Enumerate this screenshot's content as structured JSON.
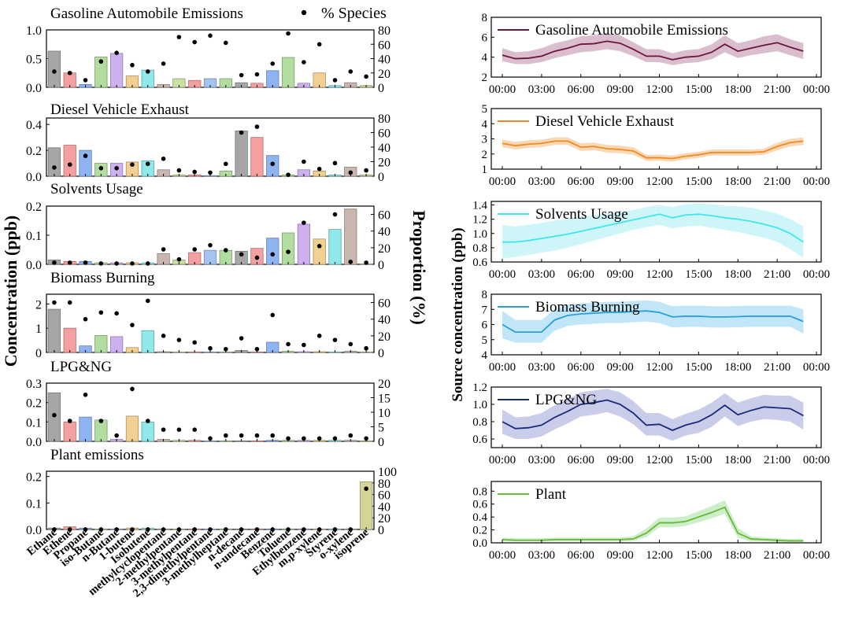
{
  "figure": {
    "left_y_label": "Concentration (ppb)",
    "right_y_label": "Proportion (%)",
    "source_y_label": "Source concentration (ppb)",
    "legend_species": "% Species"
  },
  "species": [
    "Ethane",
    "Ethene",
    "Propane",
    "iso-Butane",
    "n-Butane",
    "1-butene",
    "Isobutene",
    "methylcyclopentane",
    "2-methylpentane",
    "3-methylpentane",
    "2,3-dimethylpentane",
    "3-methylheptane",
    "n-decane",
    "n-undecane",
    "Benzene",
    "Toluene",
    "Ethylbenzene",
    "m,p-xylene",
    "Styrene",
    "o-xylene",
    "isoprene"
  ],
  "bar_colors": [
    "#a6a6a6",
    "#f4a0a0",
    "#8fb4f2",
    "#b3dda0",
    "#cdb0ee",
    "#f1d091",
    "#8fe8ea",
    "#c9b6ae",
    "#c8e0a0",
    "#f4a0a0",
    "#a5c3f0",
    "#b3dda0",
    "#a6a6a6",
    "#f4a0a0",
    "#8fb4f2",
    "#b3dda0",
    "#cdb0ee",
    "#f1d091",
    "#8fe8ea",
    "#c9b6ae",
    "#d4d49a"
  ],
  "diurnal_times": [
    "00:00",
    "03:00",
    "06:00",
    "09:00",
    "12:00",
    "15:00",
    "18:00",
    "21:00",
    "00:00"
  ],
  "chart_data": [
    {
      "type": "bar",
      "title": "Gasoline Automobile Emissions",
      "ylabel": "Concentration (ppb)",
      "ylim": [
        0,
        1.0
      ],
      "yticks": [
        "0.0",
        "0.5",
        "1.0"
      ],
      "y2label": "Proportion (%)",
      "y2lim": [
        0,
        80
      ],
      "y2ticks": [
        "0",
        "20",
        "40",
        "60",
        "80"
      ],
      "values": [
        0.63,
        0.25,
        0.05,
        0.53,
        0.59,
        0.2,
        0.3,
        0.05,
        0.15,
        0.12,
        0.15,
        0.15,
        0.08,
        0.07,
        0.29,
        0.52,
        0.07,
        0.25,
        0.03,
        0.08,
        0.03
      ],
      "proportion": [
        22,
        20,
        10,
        36,
        48,
        31,
        22,
        33,
        70,
        63,
        72,
        62,
        17,
        18,
        33,
        75,
        35,
        60,
        10,
        22,
        15
      ]
    },
    {
      "type": "bar",
      "title": "Diesel Vehicle Exhaust",
      "ylim": [
        0,
        0.45
      ],
      "yticks": [
        "0.0",
        "0.2",
        "0.4"
      ],
      "y2lim": [
        0,
        80
      ],
      "y2ticks": [
        "0",
        "20",
        "40",
        "60",
        "80"
      ],
      "values": [
        0.22,
        0.24,
        0.2,
        0.1,
        0.1,
        0.11,
        0.12,
        0.05,
        0.01,
        0.01,
        0.005,
        0.04,
        0.35,
        0.3,
        0.16,
        0.01,
        0.05,
        0.04,
        0.01,
        0.07,
        0.01
      ],
      "proportion": [
        12,
        16,
        28,
        11,
        11,
        16,
        17,
        24,
        8,
        6,
        5,
        17,
        60,
        68,
        17,
        2,
        20,
        10,
        18,
        5,
        8
      ]
    },
    {
      "type": "bar",
      "title": "Solvents Usage",
      "ylim": [
        0,
        0.2
      ],
      "yticks": [
        "0.0",
        "0.1",
        "0.2"
      ],
      "y2lim": [
        0,
        70
      ],
      "y2ticks": [
        "0",
        "20",
        "40",
        "60"
      ],
      "values": [
        0.015,
        0.01,
        0.01,
        0.005,
        0.005,
        0.005,
        0.005,
        0.037,
        0.015,
        0.04,
        0.048,
        0.048,
        0.045,
        0.055,
        0.09,
        0.108,
        0.138,
        0.087,
        0.12,
        0.19,
        0.0
      ],
      "proportion": [
        2,
        2,
        2,
        1,
        1,
        1,
        1,
        18,
        6,
        18,
        23,
        17,
        12,
        8,
        12,
        15,
        50,
        22,
        60,
        3,
        2
      ]
    },
    {
      "type": "bar",
      "title": "Biomass Burning",
      "ylim": [
        0,
        2.4
      ],
      "yticks": [
        "0",
        "1",
        "2"
      ],
      "y2lim": [
        0,
        70
      ],
      "y2ticks": [
        "0",
        "20",
        "40",
        "60"
      ],
      "values": [
        1.78,
        1.0,
        0.27,
        0.7,
        0.65,
        0.2,
        0.9,
        0.03,
        0.02,
        0.02,
        0.01,
        0.01,
        0.08,
        0.01,
        0.42,
        0.05,
        0.03,
        0.03,
        0.02,
        0.05,
        0.02
      ],
      "proportion": [
        60,
        60,
        40,
        48,
        47,
        33,
        62,
        20,
        15,
        12,
        5,
        4,
        17,
        4,
        45,
        10,
        9,
        20,
        15,
        10,
        5
      ]
    },
    {
      "type": "bar",
      "title": "LPG&NG",
      "ylim": [
        0,
        0.3
      ],
      "yticks": [
        "0.0",
        "0.1",
        "0.2",
        "0.3"
      ],
      "y2lim": [
        0,
        20
      ],
      "y2ticks": [
        "0",
        "5",
        "10",
        "15",
        "20"
      ],
      "values": [
        0.25,
        0.1,
        0.125,
        0.11,
        0.01,
        0.13,
        0.1,
        0.01,
        0.005,
        0.005,
        0.002,
        0.002,
        0.002,
        0.002,
        0.005,
        0.005,
        0.005,
        0.005,
        0.005,
        0.005,
        0.002
      ],
      "proportion": [
        9,
        7,
        16,
        7,
        2,
        18,
        7,
        4,
        4,
        4,
        1,
        2,
        2,
        2,
        2,
        1,
        1,
        1,
        1,
        2,
        1
      ]
    },
    {
      "type": "bar",
      "title": "Plant emissions",
      "ylim": [
        0,
        0.22
      ],
      "yticks": [
        "0.0",
        "0.1",
        "0.2"
      ],
      "y2lim": [
        0,
        100
      ],
      "y2ticks": [
        "0",
        "20",
        "40",
        "60",
        "80",
        "100"
      ],
      "values": [
        0.005,
        0.01,
        0.005,
        0.002,
        0.002,
        0.005,
        0.005,
        0.002,
        0.002,
        0.002,
        0.002,
        0.002,
        0.002,
        0.002,
        0.002,
        0.002,
        0.002,
        0.002,
        0.002,
        0.002,
        0.18
      ],
      "proportion": [
        0,
        0,
        0,
        0,
        0,
        0,
        0,
        0,
        0,
        0,
        0,
        0,
        0,
        0,
        0,
        0,
        0,
        0,
        0,
        0,
        70
      ]
    },
    {
      "type": "line",
      "title": "Gasoline Automobile Emissions",
      "color": "#6b1540",
      "band": "#d7b7c8",
      "ylim": [
        2,
        8
      ],
      "yticks": [
        "2",
        "4",
        "6",
        "8"
      ],
      "xlim": [
        0,
        24
      ],
      "x": [
        0,
        1,
        2,
        3,
        4,
        5,
        6,
        7,
        8,
        9,
        10,
        11,
        12,
        13,
        14,
        15,
        16,
        17,
        18,
        19,
        20,
        21,
        22,
        23
      ],
      "mean": [
        4.2,
        3.85,
        3.9,
        4.1,
        4.6,
        4.9,
        5.3,
        5.35,
        5.6,
        5.4,
        4.8,
        4.1,
        4.1,
        3.75,
        4.0,
        4.1,
        4.5,
        5.3,
        4.6,
        4.9,
        5.2,
        5.45,
        5.0,
        4.6
      ],
      "lower": [
        3.6,
        3.3,
        3.3,
        3.5,
        3.9,
        4.2,
        4.5,
        4.6,
        4.8,
        4.6,
        4.1,
        3.5,
        3.5,
        3.2,
        3.4,
        3.5,
        3.8,
        4.5,
        3.9,
        4.2,
        4.4,
        4.6,
        4.2,
        3.8
      ],
      "upper": [
        4.9,
        4.5,
        4.6,
        4.9,
        5.4,
        5.7,
        6.1,
        6.2,
        6.4,
        6.2,
        5.5,
        4.8,
        4.8,
        4.4,
        4.7,
        4.8,
        5.3,
        6.2,
        5.4,
        5.7,
        6.1,
        6.3,
        5.8,
        5.4
      ]
    },
    {
      "type": "line",
      "title": "Diesel Vehicle Exhaust",
      "color": "#f08a24",
      "band": "#f9d3ad",
      "ylim": [
        1,
        5
      ],
      "yticks": [
        "1",
        "2",
        "3",
        "4",
        "5"
      ],
      "xlim": [
        0,
        24
      ],
      "x": [
        0,
        1,
        2,
        3,
        4,
        5,
        6,
        7,
        8,
        9,
        10,
        11,
        12,
        13,
        14,
        15,
        16,
        17,
        18,
        19,
        20,
        21,
        22,
        23
      ],
      "mean": [
        2.7,
        2.55,
        2.65,
        2.7,
        2.85,
        2.85,
        2.45,
        2.5,
        2.35,
        2.3,
        2.2,
        1.75,
        1.75,
        1.7,
        1.85,
        1.95,
        2.1,
        2.1,
        2.1,
        2.1,
        2.15,
        2.5,
        2.75,
        2.85
      ],
      "lower": [
        2.45,
        2.3,
        2.4,
        2.45,
        2.6,
        2.6,
        2.2,
        2.25,
        2.1,
        2.05,
        1.95,
        1.55,
        1.55,
        1.5,
        1.65,
        1.75,
        1.9,
        1.9,
        1.9,
        1.9,
        1.95,
        2.25,
        2.5,
        2.6
      ],
      "upper": [
        2.95,
        2.8,
        2.9,
        2.95,
        3.1,
        3.1,
        2.7,
        2.75,
        2.6,
        2.55,
        2.45,
        1.95,
        1.95,
        1.9,
        2.05,
        2.15,
        2.3,
        2.3,
        2.3,
        2.3,
        2.35,
        2.75,
        3.0,
        3.1
      ]
    },
    {
      "type": "line",
      "title": "Solvents Usage",
      "color": "#3fe6ee",
      "band": "#c9f5f8",
      "ylim": [
        0.6,
        1.45
      ],
      "yticks": [
        "0.6",
        "0.8",
        "1.0",
        "1.2",
        "1.4"
      ],
      "xlim": [
        0,
        24
      ],
      "x": [
        0,
        1,
        2,
        3,
        4,
        5,
        6,
        7,
        8,
        9,
        10,
        11,
        12,
        13,
        14,
        15,
        16,
        17,
        18,
        19,
        20,
        21,
        22,
        23
      ],
      "mean": [
        0.88,
        0.88,
        0.9,
        0.93,
        0.96,
        0.99,
        1.03,
        1.07,
        1.11,
        1.15,
        1.19,
        1.23,
        1.27,
        1.22,
        1.26,
        1.27,
        1.25,
        1.22,
        1.2,
        1.17,
        1.13,
        1.08,
        1.0,
        0.88
      ],
      "lower": [
        0.65,
        0.67,
        0.7,
        0.73,
        0.76,
        0.8,
        0.85,
        0.9,
        0.95,
        1.0,
        1.05,
        1.09,
        1.12,
        1.07,
        1.1,
        1.11,
        1.08,
        1.05,
        1.02,
        0.98,
        0.94,
        0.88,
        0.78,
        0.66
      ],
      "upper": [
        1.12,
        1.1,
        1.12,
        1.15,
        1.18,
        1.2,
        1.23,
        1.26,
        1.28,
        1.3,
        1.33,
        1.37,
        1.4,
        1.37,
        1.41,
        1.42,
        1.41,
        1.39,
        1.38,
        1.36,
        1.32,
        1.28,
        1.2,
        1.1
      ]
    },
    {
      "type": "line",
      "title": "Biomass Burning",
      "color": "#2a9fd8",
      "band": "#b9e3f7",
      "ylim": [
        4,
        8
      ],
      "yticks": [
        "4",
        "5",
        "6",
        "7",
        "8"
      ],
      "xlim": [
        0,
        24
      ],
      "x": [
        0,
        1,
        2,
        3,
        4,
        5,
        6,
        7,
        8,
        9,
        10,
        11,
        12,
        13,
        14,
        15,
        16,
        17,
        18,
        19,
        20,
        21,
        22,
        23
      ],
      "mean": [
        6.0,
        5.5,
        5.5,
        5.5,
        6.3,
        6.6,
        6.7,
        6.75,
        6.8,
        6.8,
        6.85,
        6.9,
        6.8,
        6.5,
        6.55,
        6.55,
        6.5,
        6.5,
        6.52,
        6.55,
        6.55,
        6.55,
        6.55,
        6.2
      ],
      "lower": [
        5.1,
        4.8,
        4.8,
        4.8,
        5.6,
        5.9,
        6.0,
        6.05,
        6.1,
        6.1,
        6.15,
        6.2,
        6.1,
        5.8,
        5.85,
        5.85,
        5.8,
        5.8,
        5.82,
        5.85,
        5.85,
        5.85,
        5.85,
        5.4
      ],
      "upper": [
        6.9,
        6.3,
        6.3,
        6.3,
        7.0,
        7.3,
        7.4,
        7.45,
        7.5,
        7.5,
        7.55,
        7.6,
        7.5,
        7.2,
        7.25,
        7.25,
        7.2,
        7.2,
        7.22,
        7.25,
        7.25,
        7.25,
        7.25,
        7.0
      ]
    },
    {
      "type": "line",
      "title": "LPG&NG",
      "color": "#1b2a7a",
      "band": "#c3c8e8",
      "ylim": [
        0.5,
        1.2
      ],
      "yticks": [
        "0.6",
        "0.8",
        "1.0",
        "1.2"
      ],
      "xlim": [
        0,
        24
      ],
      "x": [
        0,
        1,
        2,
        3,
        4,
        5,
        6,
        7,
        8,
        9,
        10,
        11,
        12,
        13,
        14,
        15,
        16,
        17,
        18,
        19,
        20,
        21,
        22,
        23
      ],
      "mean": [
        0.8,
        0.72,
        0.73,
        0.76,
        0.85,
        0.92,
        1.0,
        1.02,
        1.05,
        1.0,
        0.9,
        0.76,
        0.77,
        0.7,
        0.76,
        0.8,
        0.88,
        0.99,
        0.88,
        0.93,
        0.97,
        0.96,
        0.95,
        0.87
      ],
      "lower": [
        0.66,
        0.6,
        0.6,
        0.63,
        0.71,
        0.78,
        0.86,
        0.88,
        0.91,
        0.86,
        0.77,
        0.64,
        0.64,
        0.58,
        0.64,
        0.67,
        0.74,
        0.86,
        0.75,
        0.8,
        0.83,
        0.82,
        0.8,
        0.71
      ],
      "upper": [
        0.94,
        0.85,
        0.86,
        0.9,
        0.99,
        1.06,
        1.14,
        1.16,
        1.18,
        1.14,
        1.04,
        0.9,
        0.9,
        0.83,
        0.89,
        0.94,
        1.02,
        1.13,
        1.02,
        1.07,
        1.11,
        1.1,
        1.1,
        1.02
      ]
    },
    {
      "type": "line",
      "title": "Plant",
      "color": "#6ab739",
      "band": "#c7ecc2",
      "ylim": [
        0,
        0.95
      ],
      "yticks": [
        "0.0",
        "0.2",
        "0.4",
        "0.6",
        "0.8"
      ],
      "xlim": [
        0,
        24
      ],
      "x": [
        0,
        1,
        2,
        3,
        4,
        5,
        6,
        7,
        8,
        9,
        10,
        11,
        12,
        13,
        14,
        15,
        16,
        17,
        18,
        19,
        20,
        21,
        22,
        23
      ],
      "mean": [
        0.05,
        0.04,
        0.04,
        0.04,
        0.05,
        0.05,
        0.05,
        0.05,
        0.05,
        0.05,
        0.06,
        0.15,
        0.31,
        0.31,
        0.33,
        0.4,
        0.47,
        0.55,
        0.15,
        0.06,
        0.05,
        0.04,
        0.03,
        0.03
      ],
      "lower": [
        0.02,
        0.02,
        0.02,
        0.02,
        0.02,
        0.02,
        0.02,
        0.02,
        0.02,
        0.02,
        0.03,
        0.09,
        0.24,
        0.24,
        0.26,
        0.32,
        0.38,
        0.45,
        0.08,
        0.02,
        0.02,
        0.01,
        0.01,
        0.01
      ],
      "upper": [
        0.08,
        0.07,
        0.07,
        0.07,
        0.08,
        0.08,
        0.08,
        0.08,
        0.08,
        0.08,
        0.1,
        0.22,
        0.39,
        0.39,
        0.41,
        0.49,
        0.57,
        0.66,
        0.23,
        0.1,
        0.08,
        0.07,
        0.06,
        0.06
      ]
    }
  ]
}
